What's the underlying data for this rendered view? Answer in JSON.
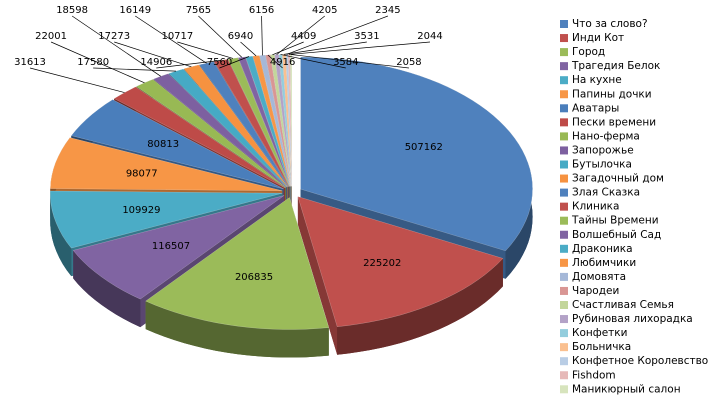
{
  "chart_data": {
    "type": "pie3d",
    "categories": [
      "Что за слово?",
      "Инди Кот",
      "Город",
      "Трагедия Белок",
      "На кухне",
      "Папины дочки",
      "Аватары",
      "Пески времени",
      "Нано-ферма",
      "Запорожье",
      "Бутылочка",
      "Загадочный дом",
      "Злая Сказка",
      "Клиника",
      "Тайны Времени",
      "Волшебный Сад",
      "Драконика",
      "Любимчики",
      "Домовята",
      "Чародеи",
      "Счастливая Семья",
      "Рубиновая лихорадка",
      "Конфетки",
      "Больничка",
      "Конфетное Королевство",
      "Fishdom",
      "Маникюрный салон"
    ],
    "values": [
      507162,
      225202,
      206835,
      116507,
      109929,
      98077,
      80813,
      31613,
      22001,
      18598,
      17580,
      17273,
      16149,
      14906,
      10717,
      7565,
      7560,
      6940,
      6156,
      4916,
      4409,
      4205,
      3584,
      3531,
      2345,
      2058,
      2044
    ],
    "colors": [
      "#4f81bd",
      "#c0504d",
      "#9bbb59",
      "#8064a2",
      "#4bacc6",
      "#f79646",
      "#4a7ebb",
      "#be4b48",
      "#98b954",
      "#7d60a0",
      "#46aac5",
      "#f69240",
      "#4f81bd",
      "#c0504d",
      "#9bbb59",
      "#8064a2",
      "#4bacc6",
      "#f79646",
      "#a5b8d8",
      "#d99694",
      "#c3d69b",
      "#b3a2c7",
      "#93cddd",
      "#fac090",
      "#b9cde5",
      "#e6b9b8",
      "#d7e4bd"
    ],
    "legend": "right"
  }
}
